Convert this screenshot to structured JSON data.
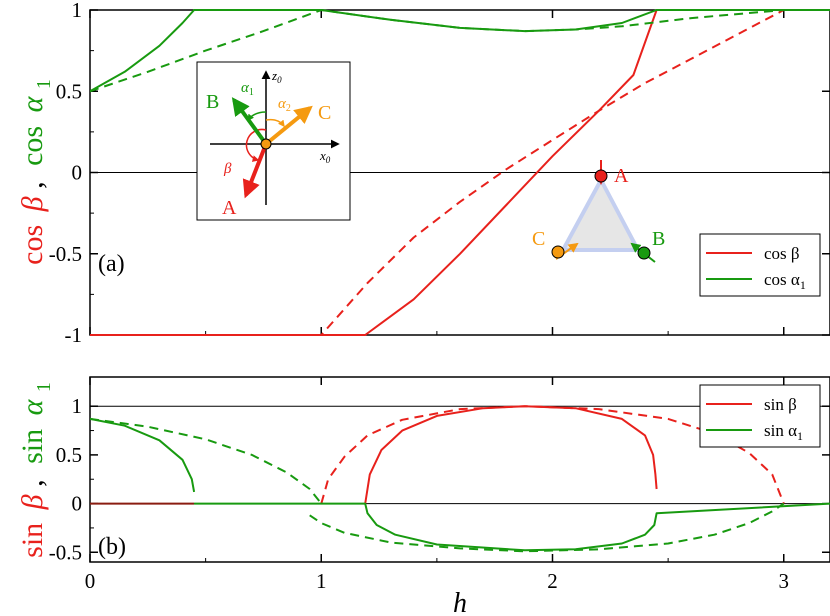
{
  "colors": {
    "red": "#e8211c",
    "green": "#189a10",
    "orange": "#f59a10",
    "black": "#000000"
  },
  "panel_a": {
    "label": "(a)",
    "ylabel_parts": [
      "cos",
      "β",
      ",",
      "cos",
      "α",
      "1"
    ],
    "legend": [
      {
        "name": "cos β",
        "color": "#e8211c"
      },
      {
        "name": "cos α",
        "sub": "1",
        "color": "#189a10"
      }
    ],
    "inset1": {
      "axis_x": "x",
      "axis_x_sub": "0",
      "axis_z": "z",
      "axis_z_sub": "0",
      "vec_A": "A",
      "vec_B": "B",
      "vec_C": "C",
      "ang_alpha1": "α",
      "ang_alpha1_sub": "1",
      "ang_alpha2": "α",
      "ang_alpha2_sub": "2",
      "ang_beta": "β"
    },
    "inset2": {
      "A": "A",
      "B": "B",
      "C": "C"
    }
  },
  "panel_b": {
    "label": "(b)",
    "ylabel_parts": [
      "sin",
      "β",
      ",",
      "sin",
      "α",
      "1"
    ],
    "legend": [
      {
        "name": "sin β",
        "color": "#e8211c"
      },
      {
        "name": "sin α",
        "sub": "1",
        "color": "#189a10"
      }
    ]
  },
  "chart_data": [
    {
      "type": "line",
      "panel": "a",
      "xlim": [
        0,
        3.2
      ],
      "ylim": [
        -1,
        1
      ],
      "yticks": [
        "1",
        "0.5",
        "0",
        "-0.5",
        "-1"
      ],
      "ytick_values": [
        1,
        0.5,
        0,
        -0.5,
        -1
      ],
      "reference_lines": [
        0
      ],
      "series": [
        {
          "name": "cos β",
          "style": "solid",
          "color": "#e8211c",
          "x": [
            0,
            1.19,
            1.4,
            1.6,
            1.8,
            2.0,
            2.2,
            2.35,
            2.45,
            2.45,
            3.2
          ],
          "y": [
            -1,
            -1,
            -0.78,
            -0.5,
            -0.2,
            0.1,
            0.38,
            0.6,
            1,
            1,
            1
          ]
        },
        {
          "name": "cos β",
          "style": "dashed",
          "color": "#e8211c",
          "x": [
            0,
            1.0,
            1.2,
            1.4,
            1.6,
            1.8,
            2.0,
            2.2,
            2.4,
            2.6,
            2.8,
            3.0,
            3.2
          ],
          "y": [
            -1,
            -1,
            -0.68,
            -0.4,
            -0.18,
            0.02,
            0.2,
            0.38,
            0.55,
            0.7,
            0.85,
            1,
            1
          ]
        },
        {
          "name": "cos α1",
          "style": "solid",
          "color": "#189a10",
          "x": [
            0,
            0.15,
            0.3,
            0.4,
            0.45,
            1.0,
            1.3,
            1.6,
            1.88,
            2.1,
            2.3,
            2.45,
            3.2
          ],
          "y": [
            0.5,
            0.62,
            0.78,
            0.92,
            1,
            1,
            0.94,
            0.89,
            0.87,
            0.88,
            0.92,
            1,
            1
          ]
        },
        {
          "name": "cos α1",
          "style": "dashed",
          "color": "#189a10",
          "x": [
            0,
            0.25,
            0.5,
            0.75,
            1.0,
            1.3,
            1.6,
            1.88,
            2.1,
            2.3,
            2.6,
            3.0,
            3.2
          ],
          "y": [
            0.5,
            0.62,
            0.75,
            0.87,
            1,
            0.94,
            0.89,
            0.87,
            0.88,
            0.9,
            0.95,
            1,
            1
          ]
        }
      ]
    },
    {
      "type": "line",
      "panel": "b",
      "xlim": [
        0,
        3.2
      ],
      "ylim": [
        -0.6,
        1.3
      ],
      "xticks": [
        "0",
        "1",
        "2",
        "3"
      ],
      "xtick_values": [
        0,
        1,
        2,
        3
      ],
      "xlabel": "h",
      "yticks": [
        "1",
        "0.5",
        "0",
        "-0.5"
      ],
      "ytick_values": [
        1,
        0.5,
        0,
        -0.5
      ],
      "reference_lines": [
        0,
        1
      ],
      "series": [
        {
          "name": "sin β",
          "style": "solid",
          "color": "#e8211c",
          "x": [
            1.19,
            1.21,
            1.26,
            1.35,
            1.5,
            1.7,
            1.88,
            2.1,
            2.3,
            2.4,
            2.435,
            2.445,
            2.45
          ],
          "y": [
            0,
            0.3,
            0.55,
            0.75,
            0.9,
            0.98,
            1,
            0.98,
            0.87,
            0.7,
            0.5,
            0.3,
            0.15
          ]
        },
        {
          "name": "sin β",
          "style": "dashed",
          "color": "#e8211c",
          "x": [
            1.0,
            1.03,
            1.1,
            1.2,
            1.35,
            1.6,
            1.88,
            2.2,
            2.5,
            2.7,
            2.85,
            2.95,
            3.0
          ],
          "y": [
            0,
            0.25,
            0.48,
            0.7,
            0.86,
            0.97,
            1,
            0.97,
            0.87,
            0.72,
            0.52,
            0.3,
            0
          ]
        },
        {
          "name": "sin β",
          "style": "solid",
          "color": "#8a1c10",
          "x": [
            0,
            0.45
          ],
          "y": [
            0,
            0
          ]
        },
        {
          "name": "sin α1",
          "style": "solid",
          "color": "#189a10",
          "x": [
            0,
            0.15,
            0.3,
            0.4,
            0.44,
            0.45
          ],
          "y": [
            0.87,
            0.8,
            0.65,
            0.45,
            0.25,
            0.12
          ]
        },
        {
          "name": "sin α1",
          "style": "dashed",
          "color": "#189a10",
          "x": [
            0,
            0.25,
            0.5,
            0.7,
            0.85,
            0.95,
            1.0
          ],
          "y": [
            0.87,
            0.79,
            0.66,
            0.5,
            0.32,
            0.15,
            0
          ]
        },
        {
          "name": "sin α1",
          "style": "solid",
          "color": "#189a10",
          "x": [
            0.45,
            1.19,
            1.2,
            1.24,
            1.32,
            1.5,
            1.88,
            2.1,
            2.3,
            2.4,
            2.44,
            2.45,
            3.2
          ],
          "y": [
            0,
            0,
            -0.1,
            -0.22,
            -0.32,
            -0.42,
            -0.48,
            -0.47,
            -0.41,
            -0.32,
            -0.22,
            -0.1,
            0
          ]
        },
        {
          "name": "sin α1",
          "style": "dashed",
          "color": "#189a10",
          "x": [
            0.95,
            1.0,
            1.1,
            1.3,
            1.6,
            1.88,
            2.2,
            2.5,
            2.7,
            2.85,
            2.95,
            3.0
          ],
          "y": [
            -0.12,
            -0.2,
            -0.3,
            -0.4,
            -0.46,
            -0.49,
            -0.47,
            -0.41,
            -0.32,
            -0.2,
            -0.08,
            0
          ]
        }
      ]
    }
  ]
}
